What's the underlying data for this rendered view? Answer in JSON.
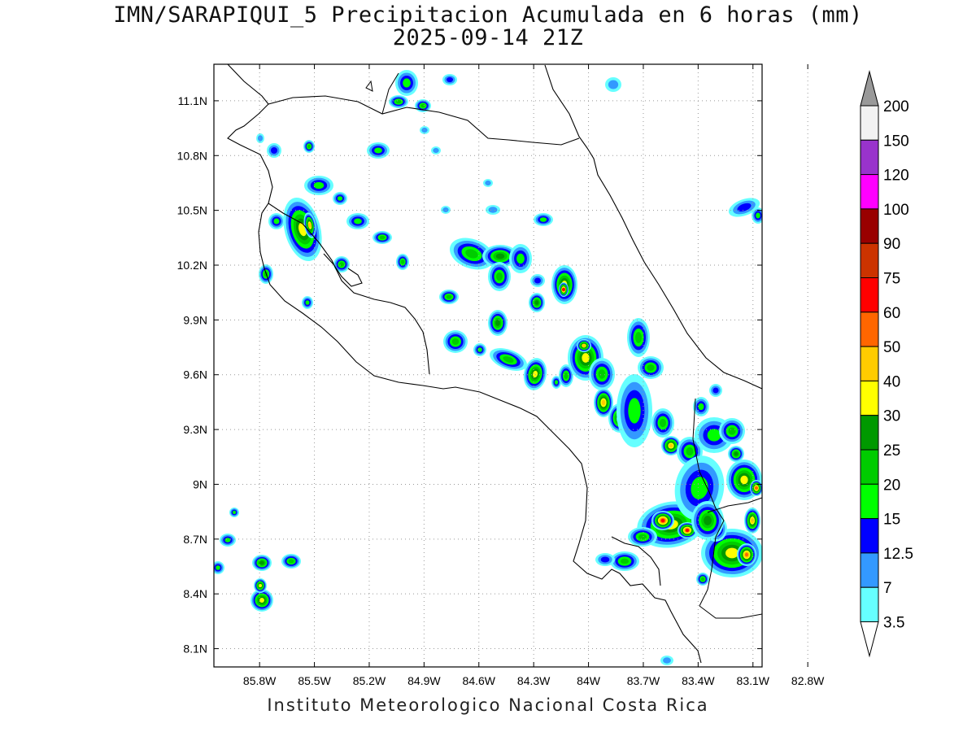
{
  "title": {
    "line1": "IMN/SARAPIQUI_5 Precipitacion Acumulada en 6 horas (mm)",
    "line2": "2025-09-14 21Z"
  },
  "footer": "Instituto Meteorologico Nacional Costa Rica",
  "map": {
    "lon_range": [
      -86.05,
      -83.05
    ],
    "lat_range": [
      8.0,
      11.3
    ],
    "lon_ticks": [
      {
        "v": -85.8,
        "label": "85.8W"
      },
      {
        "v": -85.5,
        "label": "85.5W"
      },
      {
        "v": -85.2,
        "label": "85.2W"
      },
      {
        "v": -84.9,
        "label": "84.9W"
      },
      {
        "v": -84.6,
        "label": "84.6W"
      },
      {
        "v": -84.3,
        "label": "84.3W"
      },
      {
        "v": -84.0,
        "label": "84W"
      },
      {
        "v": -83.7,
        "label": "83.7W"
      },
      {
        "v": -83.4,
        "label": "83.4W"
      },
      {
        "v": -83.1,
        "label": "83.1W"
      },
      {
        "v": -82.8,
        "label": "82.8W"
      }
    ],
    "lat_ticks": [
      {
        "v": 11.1,
        "label": "11.1N"
      },
      {
        "v": 10.8,
        "label": "10.8N"
      },
      {
        "v": 10.5,
        "label": "10.5N"
      },
      {
        "v": 10.2,
        "label": "10.2N"
      },
      {
        "v": 9.9,
        "label": "9.9N"
      },
      {
        "v": 9.6,
        "label": "9.6N"
      },
      {
        "v": 9.3,
        "label": "9.3N"
      },
      {
        "v": 9.0,
        "label": "9N"
      },
      {
        "v": 8.7,
        "label": "8.7N"
      },
      {
        "v": 8.4,
        "label": "8.4N"
      },
      {
        "v": 8.1,
        "label": "8.1N"
      }
    ],
    "grid": true
  },
  "legend": {
    "unit": "mm",
    "levels": [
      "3.5",
      "7",
      "12.5",
      "15",
      "20",
      "25",
      "30",
      "40",
      "50",
      "60",
      "75",
      "90",
      "100",
      "120",
      "150",
      "200"
    ],
    "colors": [
      "#66ffff",
      "#3399ff",
      "#0000ff",
      "#00ff00",
      "#00cc00",
      "#009900",
      "#ffff00",
      "#ffcc00",
      "#ff6600",
      "#ff0000",
      "#cc3300",
      "#990000",
      "#ff00ff",
      "#9933cc",
      "#f2f2f2"
    ],
    "cap_top_color": "#999999",
    "cap_bottom_color": "#ffffff"
  }
}
